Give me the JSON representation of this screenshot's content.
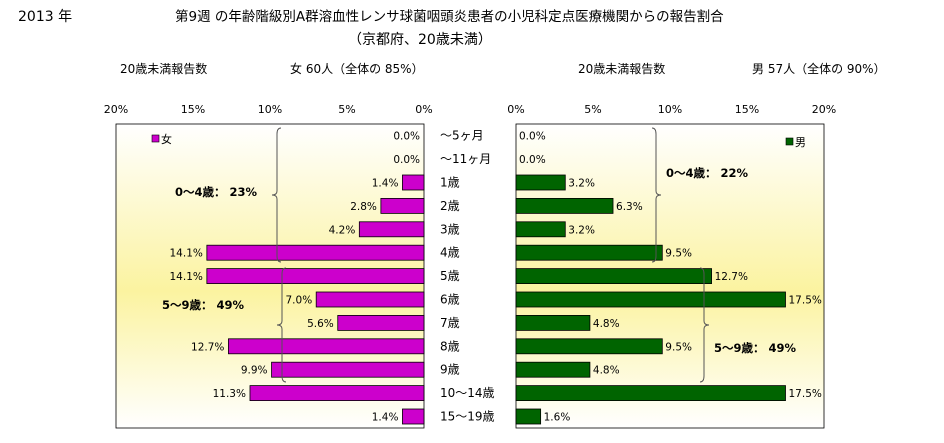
{
  "header": {
    "year": "2013 年",
    "title_line1": "第9週 の年齢階級別A群溶血性レンサ球菌咽頭炎患者の小児科定点医療機関からの報告割合",
    "title_line2": "（京都府、20歳未満）",
    "left_caption": "20歳未満報告数",
    "left_summary": "女  60人（全体の  85%）",
    "right_caption": "20歳未満報告数",
    "right_summary": "男  57人（全体の  90%）"
  },
  "colors": {
    "female": "#cc00cc",
    "male": "#006400",
    "panel_top": "#ffffff",
    "panel_center": "#fbf3a0"
  },
  "chart_data": [
    {
      "type": "bar",
      "orientation": "horizontal",
      "reversed_x": true,
      "series": [
        {
          "name": "女",
          "values": [
            0.0,
            0.0,
            1.4,
            2.8,
            4.2,
            14.1,
            14.1,
            7.0,
            5.6,
            12.7,
            9.9,
            11.3,
            1.4
          ]
        }
      ],
      "value_labels": [
        "0.0%",
        "0.0%",
        "1.4%",
        "2.8%",
        "4.2%",
        "14.1%",
        "14.1%",
        "7.0%",
        "5.6%",
        "12.7%",
        "9.9%",
        "11.3%",
        "1.4%"
      ],
      "x_ticks": [
        "20%",
        "15%",
        "10%",
        "5%",
        "0%"
      ],
      "xlim": [
        0,
        20
      ],
      "annotations": [
        "0～4歳：  23%",
        "5～9歳：  49%"
      ],
      "legend_position": "top-left"
    },
    {
      "type": "bar",
      "orientation": "horizontal",
      "series": [
        {
          "name": "男",
          "values": [
            0.0,
            0.0,
            3.2,
            6.3,
            3.2,
            9.5,
            12.7,
            17.5,
            4.8,
            9.5,
            4.8,
            17.5,
            1.6
          ]
        }
      ],
      "value_labels": [
        "0.0%",
        "0.0%",
        "3.2%",
        "6.3%",
        "3.2%",
        "9.5%",
        "12.7%",
        "17.5%",
        "4.8%",
        "9.5%",
        "4.8%",
        "17.5%",
        "1.6%"
      ],
      "x_ticks": [
        "0%",
        "5%",
        "10%",
        "15%",
        "20%"
      ],
      "xlim": [
        0,
        20
      ],
      "annotations": [
        "0～4歳：  22%",
        "5～9歳：  49%"
      ],
      "legend_position": "top-right"
    }
  ],
  "categories": [
    "～5ヶ月",
    "～11ヶ月",
    "1歳",
    "2歳",
    "3歳",
    "4歳",
    "5歳",
    "6歳",
    "7歳",
    "8歳",
    "9歳",
    "10～14歳",
    "15～19歳"
  ]
}
